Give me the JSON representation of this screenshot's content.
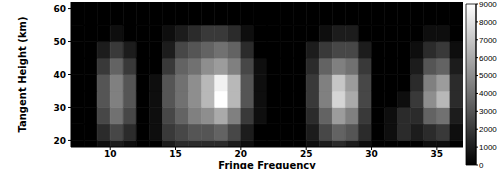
{
  "chart_data": {
    "type": "heatmap",
    "x_label": "Fringe Frequency",
    "y_label": "Tangent Height (km)",
    "xlim": [
      7,
      37
    ],
    "xticks": [
      10,
      15,
      20,
      25,
      30,
      35
    ],
    "ylim": [
      18,
      62
    ],
    "yticks": [
      20,
      30,
      40,
      50,
      60
    ],
    "x_bins": [
      7,
      8,
      9,
      10,
      11,
      12,
      13,
      14,
      15,
      16,
      17,
      18,
      19,
      20,
      21,
      22,
      23,
      24,
      25,
      26,
      27,
      28,
      29,
      30,
      31,
      32,
      33,
      34,
      35,
      36,
      37
    ],
    "y_bins": [
      18,
      20,
      25,
      30,
      35,
      40,
      45,
      50,
      55,
      62
    ],
    "cells": [
      [
        0,
        0,
        500,
        1000,
        500,
        0,
        0,
        1000,
        1500,
        1500,
        1500,
        1500,
        1000,
        500,
        0,
        0,
        0,
        0,
        500,
        1000,
        1500,
        1000,
        500,
        0,
        0,
        0,
        0,
        500,
        500,
        0
      ],
      [
        0,
        0,
        1500,
        2500,
        1500,
        0,
        500,
        2000,
        2500,
        3000,
        3000,
        3500,
        2500,
        1000,
        0,
        0,
        0,
        0,
        1000,
        2500,
        3500,
        3000,
        1500,
        0,
        500,
        1500,
        1000,
        1500,
        2000,
        500
      ],
      [
        0,
        0,
        2500,
        4000,
        2500,
        0,
        500,
        2500,
        3500,
        4500,
        5000,
        6000,
        4500,
        2000,
        500,
        0,
        0,
        0,
        1500,
        3500,
        5500,
        4500,
        2000,
        0,
        500,
        1500,
        1500,
        3500,
        4000,
        1000
      ],
      [
        0,
        0,
        3000,
        4500,
        3000,
        0,
        500,
        3000,
        4000,
        5000,
        6500,
        9000,
        6500,
        3000,
        500,
        0,
        0,
        0,
        2000,
        4500,
        7500,
        6000,
        2500,
        0,
        0,
        500,
        2000,
        5000,
        6500,
        1500
      ],
      [
        0,
        0,
        3000,
        4500,
        3000,
        0,
        500,
        3000,
        4000,
        5000,
        6500,
        8500,
        6500,
        3000,
        500,
        0,
        0,
        0,
        2000,
        4500,
        7000,
        5500,
        2500,
        0,
        0,
        0,
        1500,
        4500,
        5500,
        1500
      ],
      [
        0,
        0,
        2000,
        3500,
        2000,
        0,
        0,
        2000,
        3500,
        4000,
        5000,
        5500,
        4500,
        2500,
        500,
        0,
        0,
        0,
        1500,
        3500,
        4500,
        4000,
        2000,
        0,
        0,
        0,
        1000,
        3000,
        3500,
        1000
      ],
      [
        0,
        0,
        1000,
        2000,
        1000,
        0,
        0,
        1000,
        2500,
        3000,
        3500,
        4000,
        3500,
        1500,
        0,
        0,
        0,
        0,
        1000,
        2000,
        2500,
        2500,
        1000,
        0,
        0,
        0,
        500,
        1500,
        2000,
        500
      ],
      [
        0,
        0,
        0,
        500,
        0,
        0,
        0,
        500,
        1000,
        1500,
        2000,
        2000,
        1500,
        500,
        0,
        0,
        0,
        0,
        0,
        500,
        1000,
        1000,
        0,
        0,
        0,
        0,
        0,
        500,
        500,
        0
      ],
      [
        0,
        0,
        0,
        0,
        0,
        0,
        0,
        0,
        0,
        0,
        0,
        0,
        0,
        0,
        0,
        0,
        0,
        0,
        0,
        0,
        0,
        0,
        0,
        0,
        0,
        0,
        0,
        0,
        0,
        0
      ]
    ],
    "colorbar": {
      "range": [
        0,
        9000
      ],
      "ticks": [
        0,
        1000,
        2000,
        3000,
        4000,
        5000,
        6000,
        7000,
        8000,
        9000
      ],
      "color": "gray"
    }
  }
}
